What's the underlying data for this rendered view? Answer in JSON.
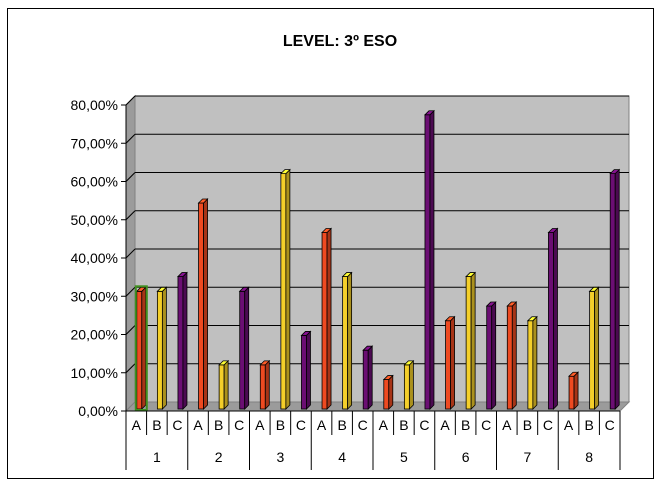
{
  "chart_data": {
    "type": "bar",
    "title": "LEVEL: 3º ESO",
    "xlabel": "",
    "ylabel": "",
    "ylim": [
      0,
      0.8
    ],
    "y_tick_values": [
      0,
      0.1,
      0.2,
      0.3,
      0.4,
      0.5,
      0.6,
      0.7,
      0.8
    ],
    "y_tick_labels": [
      "0,00%",
      "10,00%",
      "20,00%",
      "30,00%",
      "40,00%",
      "50,00%",
      "60,00%",
      "70,00%",
      "80,00%"
    ],
    "grid": true,
    "legend": "none",
    "groups": [
      "1",
      "2",
      "3",
      "4",
      "5",
      "6",
      "7",
      "8"
    ],
    "categories": [
      "A",
      "B",
      "C",
      "A",
      "B",
      "C",
      "A",
      "B",
      "C",
      "A",
      "B",
      "C",
      "A",
      "B",
      "C",
      "A",
      "B",
      "C",
      "A",
      "B",
      "C",
      "A",
      "B",
      "C"
    ],
    "values": [
      0.3077,
      0.3077,
      0.3462,
      0.5385,
      0.1154,
      0.3077,
      0.1154,
      0.6154,
      0.1923,
      0.4615,
      0.3462,
      0.1538,
      0.0769,
      0.1154,
      0.7692,
      0.2308,
      0.3462,
      0.2692,
      0.2692,
      0.2308,
      0.4615,
      0.0857,
      0.3077,
      0.6154
    ],
    "bar_colors": [
      "#ee4a21",
      "#f4cf2a",
      "#6b0e73"
    ],
    "highlight_index": 0,
    "highlight_color": "#3f8f20"
  }
}
